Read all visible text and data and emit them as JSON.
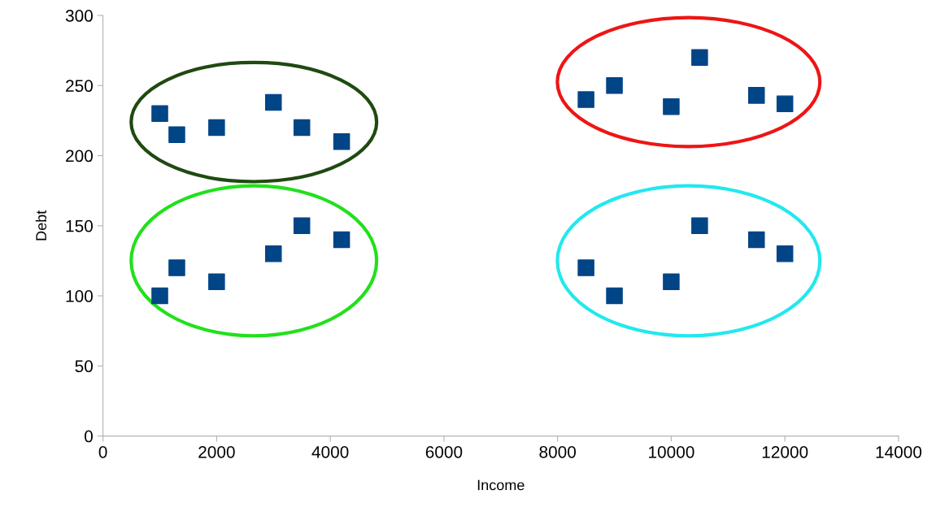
{
  "chart_data": {
    "type": "scatter",
    "xlabel": "Income",
    "ylabel": "Debt",
    "xlim": [
      0,
      14000
    ],
    "xticks": [
      0,
      2000,
      4000,
      6000,
      8000,
      10000,
      12000,
      14000
    ],
    "ylim": [
      0,
      300
    ],
    "yticks": [
      0,
      50,
      100,
      150,
      200,
      250,
      300
    ],
    "marker": "square",
    "series": [
      {
        "color": "#004586",
        "x": [
          1000,
          1300,
          2000,
          3000,
          3500,
          4200
        ],
        "values": [
          230,
          215,
          220,
          238,
          220,
          210
        ]
      },
      {
        "color": "#004586",
        "x": [
          1000,
          1300,
          2000,
          3000,
          3500,
          4200
        ],
        "values": [
          100,
          120,
          110,
          130,
          150,
          140
        ]
      },
      {
        "color": "#004586",
        "x": [
          8500,
          9000,
          10000,
          10500,
          11500,
          12000
        ],
        "values": [
          240,
          250,
          235,
          270,
          243,
          237
        ]
      },
      {
        "color": "#004586",
        "x": [
          8500,
          9000,
          10000,
          10500,
          11500,
          12000
        ],
        "values": [
          120,
          100,
          110,
          150,
          140,
          130
        ]
      }
    ]
  }
}
